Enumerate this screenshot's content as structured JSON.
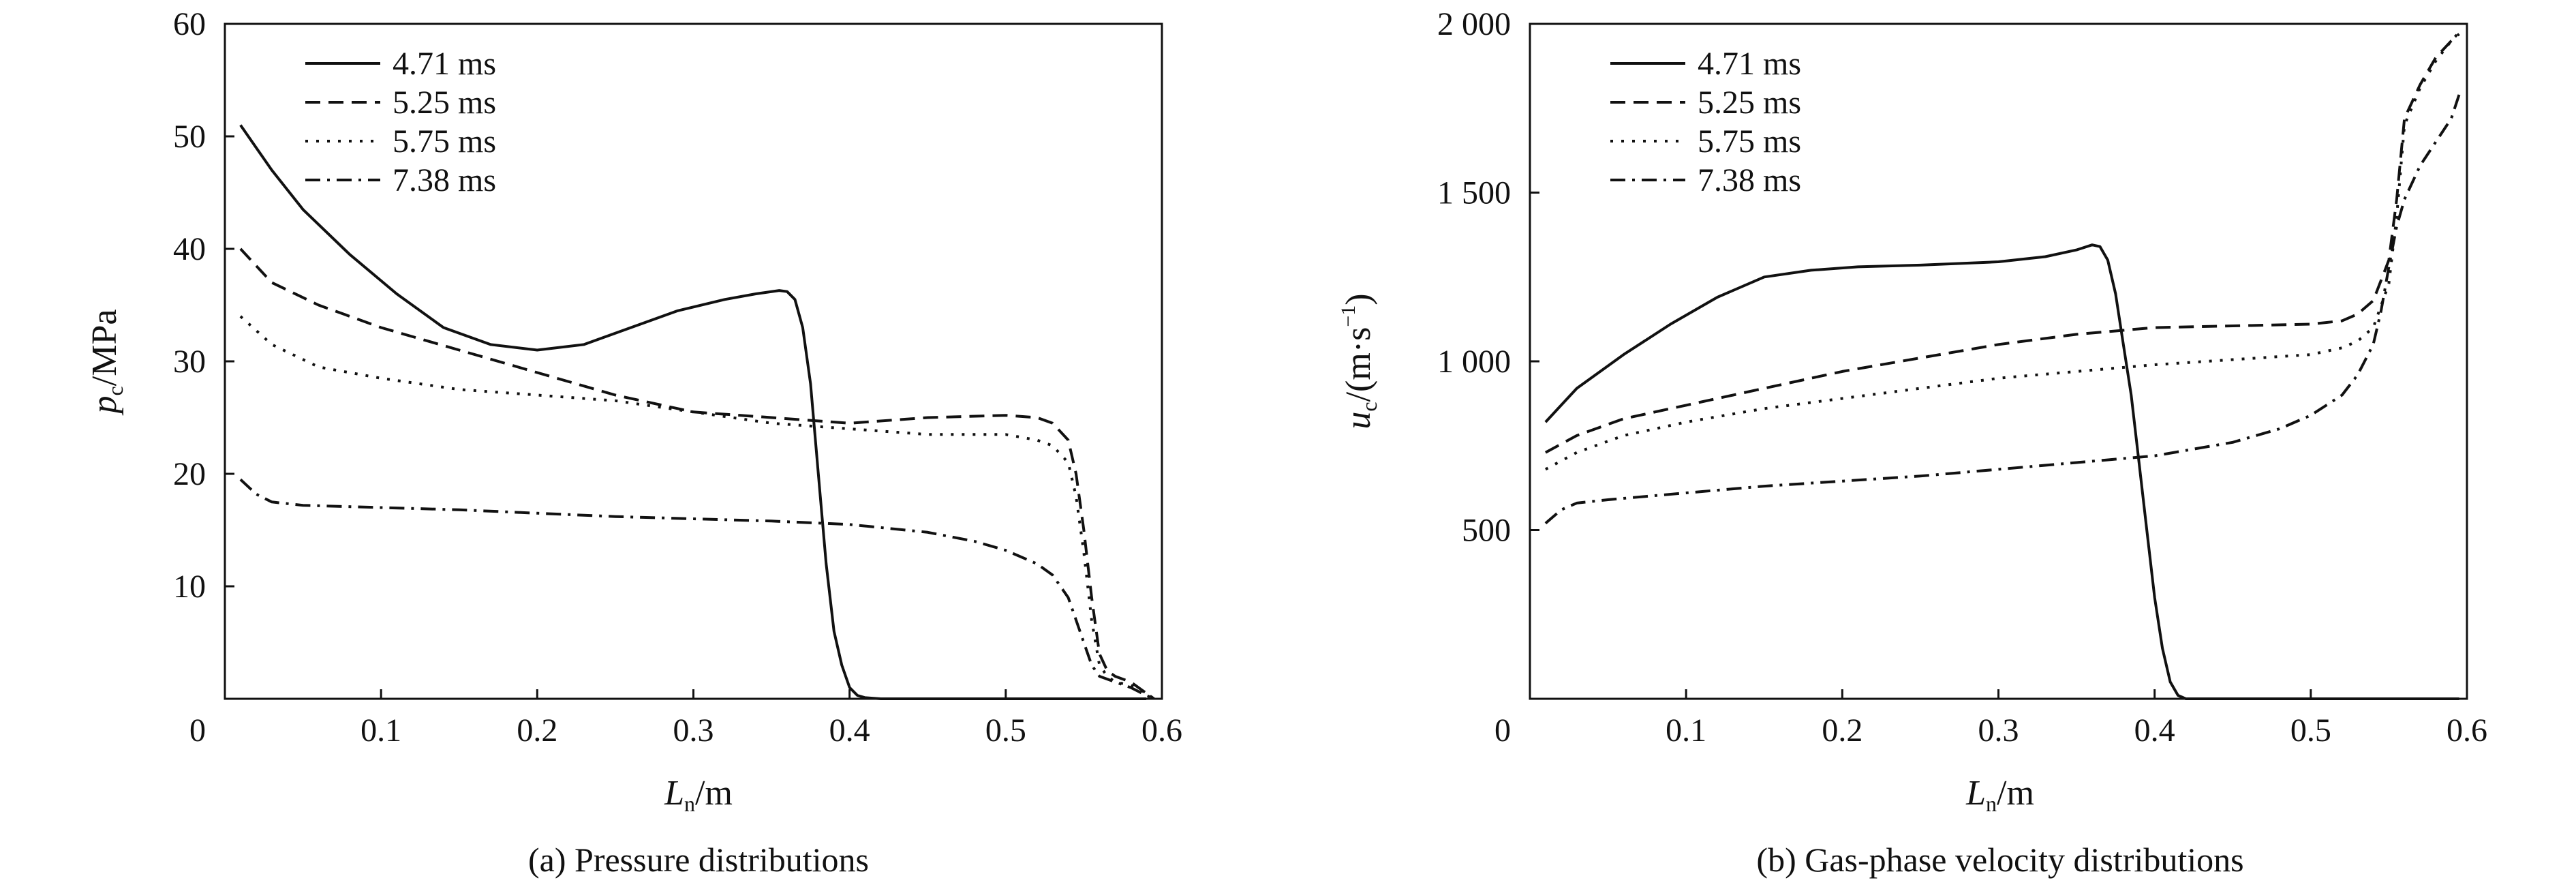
{
  "chart_data": [
    {
      "type": "line",
      "caption": "(a) Pressure distributions",
      "xlabel": {
        "main": "L",
        "sub": "n",
        "unit": "/m"
      },
      "ylabel": {
        "main": "p",
        "sub": "c",
        "unit": "/MPa"
      },
      "xlim": [
        0,
        0.6
      ],
      "ylim": [
        0,
        60
      ],
      "xticks": [
        {
          "v": 0,
          "label": "0"
        },
        {
          "v": 0.1,
          "label": "0.1"
        },
        {
          "v": 0.2,
          "label": "0.2"
        },
        {
          "v": 0.3,
          "label": "0.3"
        },
        {
          "v": 0.4,
          "label": "0.4"
        },
        {
          "v": 0.5,
          "label": "0.5"
        },
        {
          "v": 0.6,
          "label": "0.6"
        }
      ],
      "yticks": [
        {
          "v": 10,
          "label": "10"
        },
        {
          "v": 20,
          "label": "20"
        },
        {
          "v": 30,
          "label": "30"
        },
        {
          "v": 40,
          "label": "40"
        },
        {
          "v": 50,
          "label": "50"
        },
        {
          "v": 60,
          "label": "60"
        }
      ],
      "legend_position": "top-left",
      "series": [
        {
          "name": "4.71 ms",
          "style": "solid",
          "x": [
            0.01,
            0.03,
            0.05,
            0.08,
            0.11,
            0.14,
            0.17,
            0.2,
            0.23,
            0.26,
            0.29,
            0.32,
            0.34,
            0.355,
            0.36,
            0.365,
            0.37,
            0.375,
            0.38,
            0.385,
            0.39,
            0.395,
            0.4,
            0.405,
            0.41,
            0.42,
            0.45,
            0.5,
            0.55,
            0.59
          ],
          "y": [
            51,
            47,
            43.5,
            39.5,
            36,
            33,
            31.5,
            31,
            31.5,
            33,
            34.5,
            35.5,
            36,
            36.3,
            36.2,
            35.5,
            33,
            28,
            20,
            12,
            6,
            3,
            1,
            0.3,
            0.1,
            0,
            0,
            0,
            0,
            0
          ]
        },
        {
          "name": "5.25 ms",
          "style": "dashed",
          "x": [
            0.01,
            0.03,
            0.06,
            0.1,
            0.15,
            0.2,
            0.25,
            0.3,
            0.35,
            0.4,
            0.45,
            0.5,
            0.52,
            0.53,
            0.54,
            0.545,
            0.55,
            0.555,
            0.56,
            0.565,
            0.57,
            0.58,
            0.59,
            0.595
          ],
          "y": [
            40,
            37,
            35,
            33,
            31,
            29,
            27,
            25.5,
            25,
            24.5,
            25,
            25.2,
            25,
            24.5,
            23,
            20,
            15,
            9,
            4,
            2.5,
            2,
            1.5,
            0.5,
            0
          ]
        },
        {
          "name": "5.75 ms",
          "style": "dotted",
          "x": [
            0.01,
            0.03,
            0.06,
            0.1,
            0.15,
            0.2,
            0.25,
            0.3,
            0.35,
            0.4,
            0.45,
            0.5,
            0.52,
            0.53,
            0.54,
            0.545,
            0.55,
            0.555,
            0.56,
            0.565,
            0.57,
            0.58,
            0.59,
            0.595
          ],
          "y": [
            34,
            31.5,
            29.5,
            28.5,
            27.5,
            27,
            26.5,
            25.5,
            24.5,
            24,
            23.5,
            23.5,
            23,
            22.5,
            21,
            18,
            13,
            7,
            3,
            2,
            1.5,
            1.2,
            0.5,
            0
          ]
        },
        {
          "name": "7.38 ms",
          "style": "dashdot",
          "x": [
            0.01,
            0.02,
            0.03,
            0.05,
            0.1,
            0.15,
            0.2,
            0.25,
            0.3,
            0.35,
            0.4,
            0.45,
            0.48,
            0.5,
            0.52,
            0.53,
            0.54,
            0.545,
            0.55,
            0.555,
            0.56,
            0.57,
            0.58,
            0.59,
            0.595
          ],
          "y": [
            19.5,
            18.2,
            17.5,
            17.2,
            17,
            16.8,
            16.5,
            16.2,
            16,
            15.8,
            15.5,
            14.8,
            14,
            13.2,
            12,
            11,
            9,
            7,
            5,
            3,
            2,
            1.5,
            1,
            0.3,
            0
          ]
        }
      ],
      "colors": {
        "line": "#111111"
      }
    },
    {
      "type": "line",
      "caption": "(b) Gas-phase velocity distributions",
      "xlabel": {
        "main": "L",
        "sub": "n",
        "unit": "/m"
      },
      "ylabel": {
        "main": "u",
        "sub": "c",
        "unit_pre": "/(m·s",
        "unit_sup": "−1",
        "unit_post": ")"
      },
      "xlim": [
        0,
        0.6
      ],
      "ylim": [
        0,
        2000
      ],
      "xticks": [
        {
          "v": 0,
          "label": "0"
        },
        {
          "v": 0.1,
          "label": "0.1"
        },
        {
          "v": 0.2,
          "label": "0.2"
        },
        {
          "v": 0.3,
          "label": "0.3"
        },
        {
          "v": 0.4,
          "label": "0.4"
        },
        {
          "v": 0.5,
          "label": "0.5"
        },
        {
          "v": 0.6,
          "label": "0.6"
        }
      ],
      "yticks": [
        {
          "v": 500,
          "label": "500"
        },
        {
          "v": 1000,
          "label": "1 000"
        },
        {
          "v": 1500,
          "label": "1 500"
        },
        {
          "v": 2000,
          "label": "2 000"
        }
      ],
      "legend_position": "top-left",
      "series": [
        {
          "name": "4.71 ms",
          "style": "solid",
          "x": [
            0.01,
            0.03,
            0.06,
            0.09,
            0.12,
            0.15,
            0.18,
            0.21,
            0.25,
            0.3,
            0.33,
            0.35,
            0.36,
            0.365,
            0.37,
            0.375,
            0.38,
            0.385,
            0.39,
            0.395,
            0.4,
            0.405,
            0.41,
            0.415,
            0.42,
            0.43,
            0.45,
            0.5,
            0.55,
            0.595
          ],
          "y": [
            820,
            920,
            1020,
            1110,
            1190,
            1250,
            1270,
            1280,
            1285,
            1295,
            1310,
            1330,
            1345,
            1340,
            1300,
            1200,
            1050,
            900,
            700,
            500,
            300,
            150,
            50,
            10,
            0,
            0,
            0,
            0,
            0,
            0
          ]
        },
        {
          "name": "5.25 ms",
          "style": "dashed",
          "x": [
            0.01,
            0.03,
            0.06,
            0.1,
            0.15,
            0.2,
            0.25,
            0.3,
            0.35,
            0.4,
            0.45,
            0.5,
            0.52,
            0.53,
            0.54,
            0.55,
            0.555,
            0.56,
            0.57,
            0.58,
            0.59,
            0.595
          ],
          "y": [
            730,
            780,
            830,
            870,
            920,
            970,
            1010,
            1050,
            1080,
            1100,
            1105,
            1110,
            1120,
            1140,
            1180,
            1300,
            1480,
            1720,
            1820,
            1900,
            1950,
            1970
          ]
        },
        {
          "name": "5.75 ms",
          "style": "dotted",
          "x": [
            0.01,
            0.03,
            0.06,
            0.1,
            0.15,
            0.2,
            0.25,
            0.3,
            0.35,
            0.4,
            0.45,
            0.5,
            0.52,
            0.53,
            0.54,
            0.55,
            0.555,
            0.56,
            0.57,
            0.58,
            0.59,
            0.595
          ],
          "y": [
            680,
            730,
            780,
            820,
            860,
            890,
            920,
            950,
            970,
            990,
            1005,
            1020,
            1040,
            1060,
            1100,
            1230,
            1430,
            1700,
            1810,
            1890,
            1950,
            1975
          ]
        },
        {
          "name": "7.38 ms",
          "style": "dashdot",
          "x": [
            0.01,
            0.02,
            0.03,
            0.05,
            0.1,
            0.15,
            0.2,
            0.25,
            0.3,
            0.35,
            0.4,
            0.45,
            0.48,
            0.5,
            0.52,
            0.53,
            0.54,
            0.545,
            0.55,
            0.555,
            0.56,
            0.57,
            0.58,
            0.59,
            0.595
          ],
          "y": [
            520,
            560,
            580,
            590,
            610,
            630,
            645,
            660,
            680,
            700,
            720,
            760,
            800,
            840,
            900,
            960,
            1050,
            1150,
            1280,
            1400,
            1480,
            1580,
            1650,
            1720,
            1790
          ]
        }
      ],
      "colors": {
        "line": "#111111"
      }
    }
  ]
}
